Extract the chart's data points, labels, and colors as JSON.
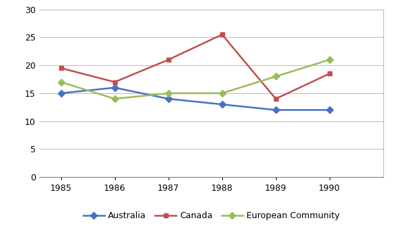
{
  "years": [
    1985,
    1986,
    1987,
    1988,
    1989,
    1990
  ],
  "australia": [
    15,
    16,
    14,
    13,
    12,
    12
  ],
  "canada": [
    19.5,
    17,
    21,
    25.5,
    14,
    18.5
  ],
  "european_community": [
    17,
    14,
    15,
    15,
    18,
    21
  ],
  "australia_color": "#4472C4",
  "canada_color": "#C0504D",
  "ec_color": "#9BBB59",
  "australia_label": "Australia",
  "canada_label": "Canada",
  "ec_label": "European Community",
  "ylim": [
    0,
    30
  ],
  "yticks": [
    0,
    5,
    10,
    15,
    20,
    25,
    30
  ],
  "background_color": "#FFFFFF",
  "grid_color": "#BFBFBF",
  "linewidth": 1.8,
  "markersize": 5,
  "legend_fontsize": 9,
  "tick_fontsize": 9
}
